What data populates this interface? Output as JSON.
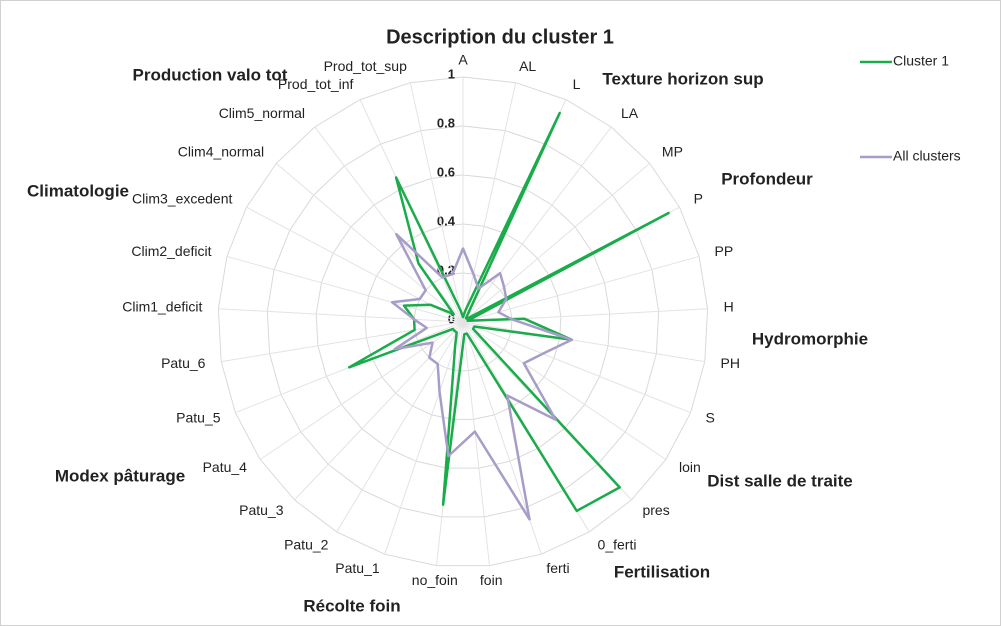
{
  "chart_data": {
    "type": "radar",
    "title": "Description du cluster 1",
    "categories": [
      "A",
      "AL",
      "L",
      "LA",
      "MP",
      "P",
      "PP",
      "H",
      "PH",
      "S",
      "loin",
      "pres",
      "0_ferti",
      "ferti",
      "foin",
      "no_foin",
      "Patu_1",
      "Patu_2",
      "Patu_3",
      "Patu_4",
      "Patu_5",
      "Patu_6",
      "Clim1_deficit",
      "Clim2_deficit",
      "Clim3_excedent",
      "Clim4_normal",
      "Clim5_normal",
      "Prod_tot_inf",
      "Prod_tot_sup"
    ],
    "series": [
      {
        "name": "Cluster 1",
        "color": "#1aab4b",
        "values": [
          0.02,
          0.05,
          0.94,
          0.02,
          0.02,
          0.95,
          0.02,
          0.25,
          0.45,
          0.05,
          0.05,
          0.93,
          0.9,
          0.05,
          0.05,
          0.75,
          0.1,
          0.05,
          0.05,
          0.05,
          0.5,
          0.2,
          0.2,
          0.25,
          0.15,
          0.05,
          0.3,
          0.65,
          0.05
        ]
      },
      {
        "name": "All clusters",
        "color": "#a89cc8",
        "values": [
          0.3,
          0.2,
          0.15,
          0.25,
          0.22,
          0.2,
          0.15,
          0.2,
          0.45,
          0.35,
          0.3,
          0.55,
          0.35,
          0.85,
          0.45,
          0.55,
          0.3,
          0.2,
          0.2,
          0.15,
          0.3,
          0.15,
          0.2,
          0.3,
          0.2,
          0.2,
          0.45,
          0.2,
          0.2
        ]
      }
    ],
    "ylim": [
      0,
      1
    ],
    "yticks": [
      0,
      0.2,
      0.4,
      0.6,
      0.8,
      1
    ],
    "annotations": [
      "Texture horizon sup",
      "Profondeur",
      "Hydromorphie",
      "Dist salle de traite",
      "Fertilisation",
      "Récolte foin",
      "Modex pâturage",
      "Climatologie",
      "Production valo tot"
    ]
  }
}
